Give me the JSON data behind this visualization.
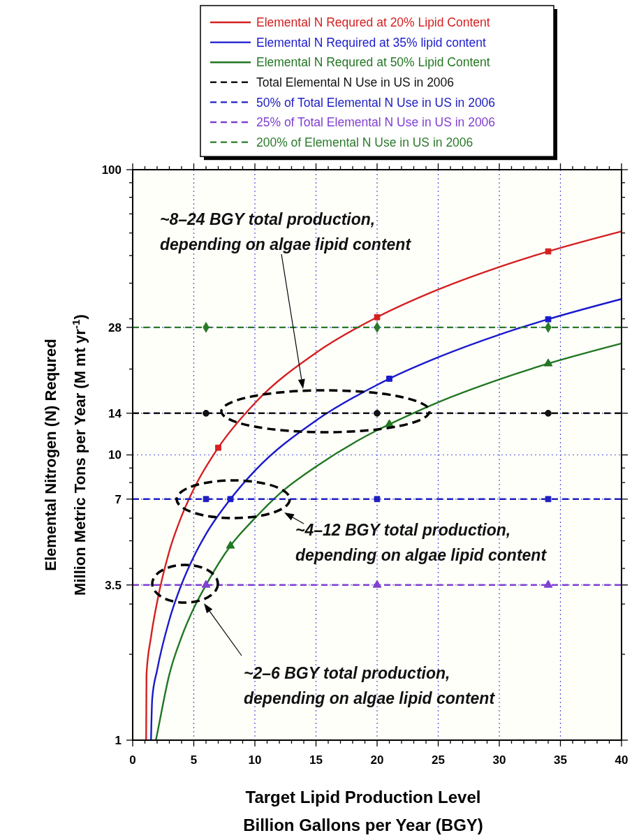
{
  "chart_data": {
    "type": "line",
    "xlabel": "Target Lipid Production Level\nBillion Gallons per Year (BGY)",
    "ylabel": "Elemental Nitrogen (N) Requred\nMillion Metric Tons per Year  (M mt yr$^{-1}$)",
    "log": "y",
    "grid": true,
    "legend": "top",
    "xlim": [
      0,
      40
    ],
    "ylim": [
      1,
      100
    ],
    "xticks": [
      0,
      {
        "value": 1,
        "label": null
      },
      {
        "value": 2,
        "label": null
      },
      {
        "value": 3,
        "label": null
      },
      {
        "value": 4,
        "label": null
      },
      5,
      {
        "value": 6,
        "label": null
      },
      {
        "value": 7,
        "label": null
      },
      {
        "value": 8,
        "label": null
      },
      {
        "value": 9,
        "label": null
      },
      10,
      {
        "value": 11,
        "label": null
      },
      {
        "value": 12,
        "label": null
      },
      {
        "value": 13,
        "label": null
      },
      {
        "value": 14,
        "label": null
      },
      15,
      {
        "value": 16,
        "label": null
      },
      {
        "value": 17,
        "label": null
      },
      {
        "value": 18,
        "label": null
      },
      {
        "value": 19,
        "label": null
      },
      20,
      {
        "value": 21,
        "label": null
      },
      {
        "value": 22,
        "label": null
      },
      {
        "value": 23,
        "label": null
      },
      {
        "value": 24,
        "label": null
      },
      25,
      {
        "value": 26,
        "label": null
      },
      {
        "value": 27,
        "label": null
      },
      {
        "value": 28,
        "label": null
      },
      {
        "value": 29,
        "label": null
      },
      30,
      {
        "value": 31,
        "label": null
      },
      {
        "value": 32,
        "label": null
      },
      {
        "value": 33,
        "label": null
      },
      {
        "value": 34,
        "label": null
      },
      35,
      {
        "value": 36,
        "label": null
      },
      {
        "value": 37,
        "label": null
      },
      {
        "value": 38,
        "label": null
      },
      {
        "value": 39,
        "label": null
      },
      40
    ],
    "yticks": [
      1,
      {
        "value": 2,
        "label": null
      },
      {
        "value": 3,
        "label": null
      },
      3.5,
      {
        "value": 4,
        "label": null
      },
      {
        "value": 5,
        "label": null
      },
      {
        "value": 6,
        "label": null
      },
      7,
      {
        "value": 8,
        "label": null
      },
      {
        "value": 9,
        "label": null
      },
      10,
      14,
      {
        "value": 20,
        "label": null
      },
      28,
      {
        "value": 30,
        "label": null
      },
      {
        "value": 40,
        "label": null
      },
      {
        "value": 50,
        "label": null
      },
      {
        "value": 60,
        "label": null
      },
      {
        "value": 70,
        "label": null
      },
      {
        "value": 80,
        "label": null
      },
      {
        "value": 90,
        "label": null
      },
      100
    ],
    "series": [
      {
        "name": "Elemental N Requred at 20% Lipid Content",
        "color": "#d42020",
        "line_style": "solid",
        "x": [
          1.1,
          1.13,
          1.5,
          2,
          3,
          4,
          5,
          7,
          10,
          15,
          20,
          25,
          30,
          34,
          40
        ],
        "values": [
          1,
          1.7,
          2.3,
          3.05,
          4.6,
          6.1,
          7.6,
          10.6,
          15.2,
          22.8,
          30.4,
          38,
          45.6,
          51.7,
          60.8
        ]
      },
      {
        "name": "Elemental N Required at 35% lipid content",
        "color": "#1a1acc",
        "line_style": "solid",
        "x": [
          1.5,
          1.6,
          2,
          3,
          4,
          5,
          6,
          8,
          10,
          15,
          20,
          21,
          25,
          30,
          34,
          40
        ],
        "values": [
          1,
          1.4,
          1.76,
          2.64,
          3.52,
          4.4,
          5.28,
          7,
          8.8,
          13.2,
          17.6,
          18.5,
          22,
          26.4,
          29.9,
          35.2
        ]
      },
      {
        "name": "Elemental N Requred at 50% Lipid Content",
        "color": "#227722",
        "line_style": "solid",
        "x": [
          1.9,
          2,
          3,
          4,
          5,
          6,
          8,
          10,
          12,
          15,
          20,
          21,
          25,
          30,
          34,
          40
        ],
        "values": [
          1,
          1.05,
          1.7,
          2.3,
          2.9,
          3.5,
          4.8,
          6,
          7.3,
          9.1,
          12.2,
          12.8,
          15.3,
          18.4,
          20.9,
          24.6
        ]
      },
      {
        "type": "scatter",
        "color": "#d42020",
        "marker": "square",
        "x": [
          7,
          20,
          34
        ],
        "values": [
          10.6,
          30.4,
          51.7
        ]
      },
      {
        "type": "scatter",
        "color": "#1a1acc",
        "marker": "square",
        "x": [
          8,
          21,
          34
        ],
        "values": [
          7,
          18.5,
          29.9
        ]
      },
      {
        "type": "scatter",
        "color": "#227722",
        "marker": "triangle",
        "x": [
          8,
          21,
          34
        ],
        "values": [
          4.8,
          12.8,
          20.9
        ]
      },
      {
        "name": "Total Elemental N Use in US in 2006",
        "color": "#111111",
        "line_style": "dashed",
        "x": [
          0,
          40
        ],
        "values": [
          14,
          14
        ]
      },
      {
        "name": "50% of Total Elemental N Use in US in 2006",
        "color": "#2020c0",
        "line_style": "dashed",
        "x": [
          0,
          40
        ],
        "values": [
          7,
          7
        ]
      },
      {
        "name": "25% of Total Elemental N Use in US in 2006",
        "color": "#8040d0",
        "line_style": "dashed",
        "x": [
          0,
          40
        ],
        "values": [
          3.5,
          3.5
        ]
      },
      {
        "name": "200% of Elemental N Use in US in 2006",
        "color": "#2a7a2a",
        "line_style": "dashed",
        "x": [
          0,
          40
        ],
        "values": [
          28,
          28
        ]
      },
      {
        "type": "scatter",
        "color": "#111111",
        "marker": "circle",
        "x": [
          6,
          20,
          34
        ],
        "values": [
          14,
          14,
          14
        ]
      },
      {
        "type": "scatter",
        "color": "#2020c0",
        "marker": "square",
        "x": [
          6,
          20,
          34
        ],
        "values": [
          7,
          7,
          7
        ]
      },
      {
        "type": "scatter",
        "color": "#8040d0",
        "marker": "triangle",
        "x": [
          6,
          20,
          34
        ],
        "values": [
          3.5,
          3.5,
          3.5
        ]
      },
      {
        "type": "scatter",
        "color": "#2a7a2a",
        "marker": "diamond",
        "x": [
          6,
          20,
          34
        ],
        "values": [
          28,
          28,
          28
        ]
      }
    ],
    "annotations": [
      "~8–24 BGY total production,\ndepending on algae lipid content",
      "~4–12 BGY total production,\ndepending on algae lipid content",
      "~2–6 BGY total production,\ndepending on algae lipid content"
    ]
  }
}
